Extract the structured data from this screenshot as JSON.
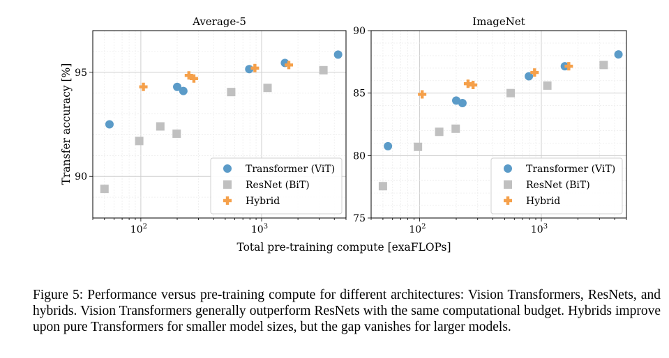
{
  "figure": {
    "ylabel": "Transfer accuracy [%]",
    "xlabel": "Total pre-training compute [exaFLOPs]",
    "caption": "Figure 5: Performance versus pre-training compute for different architectures: Vision Transformers, ResNets, and hybrids. Vision Transformers generally outperform ResNets with the same computational budget. Hybrids improve upon pure Transformers for smaller model sizes, but the gap vanishes for larger models."
  },
  "chart_data": [
    {
      "type": "scatter",
      "title": "Average-5",
      "xlabel": "",
      "ylabel": "Transfer accuracy [%]",
      "xscale": "log",
      "xlim": [
        40,
        5000
      ],
      "ylim": [
        88,
        97
      ],
      "x_ticks": [
        100,
        1000
      ],
      "x_tick_labels": [
        "10^2",
        "10^3"
      ],
      "y_ticks": [
        90,
        95
      ],
      "y_tick_labels": [
        "90",
        "95"
      ],
      "grid": true,
      "legend_position": "bottom-right",
      "series": [
        {
          "name": "Transformer (ViT)",
          "marker": "circle",
          "color": "#5b9bc8",
          "points": [
            [
              55,
              92.5
            ],
            [
              200,
              94.3
            ],
            [
              225,
              94.1
            ],
            [
              790,
              95.15
            ],
            [
              1560,
              95.45
            ],
            [
              4300,
              95.85
            ]
          ]
        },
        {
          "name": "ResNet (BiT)",
          "marker": "square",
          "color": "#c0c0c0",
          "points": [
            [
              50,
              89.4
            ],
            [
              97,
              91.7
            ],
            [
              145,
              92.4
            ],
            [
              198,
              92.05
            ],
            [
              560,
              94.05
            ],
            [
              1120,
              94.25
            ],
            [
              3250,
              95.1
            ]
          ]
        },
        {
          "name": "Hybrid",
          "marker": "plus",
          "color": "#f5a04a",
          "points": [
            [
              105,
              94.3
            ],
            [
              250,
              94.85
            ],
            [
              275,
              94.7
            ],
            [
              880,
              95.2
            ],
            [
              1680,
              95.35
            ]
          ]
        }
      ]
    },
    {
      "type": "scatter",
      "title": "ImageNet",
      "xlabel": "",
      "ylabel": "",
      "xscale": "log",
      "xlim": [
        40,
        5000
      ],
      "ylim": [
        75,
        90
      ],
      "x_ticks": [
        100,
        1000
      ],
      "x_tick_labels": [
        "10^2",
        "10^3"
      ],
      "y_ticks": [
        75,
        80,
        85,
        90
      ],
      "y_tick_labels": [
        "75",
        "80",
        "85",
        "90"
      ],
      "grid": true,
      "legend_position": "bottom-right",
      "series": [
        {
          "name": "Transformer (ViT)",
          "marker": "circle",
          "color": "#5b9bc8",
          "points": [
            [
              55,
              80.75
            ],
            [
              200,
              84.4
            ],
            [
              225,
              84.2
            ],
            [
              790,
              86.35
            ],
            [
              1560,
              87.15
            ],
            [
              4300,
              88.1
            ]
          ]
        },
        {
          "name": "ResNet (BiT)",
          "marker": "square",
          "color": "#c0c0c0",
          "points": [
            [
              50,
              77.55
            ],
            [
              97,
              80.7
            ],
            [
              145,
              81.9
            ],
            [
              198,
              82.15
            ],
            [
              560,
              85.0
            ],
            [
              1120,
              85.6
            ],
            [
              3250,
              87.25
            ]
          ]
        },
        {
          "name": "Hybrid",
          "marker": "plus",
          "color": "#f5a04a",
          "points": [
            [
              105,
              84.9
            ],
            [
              250,
              85.75
            ],
            [
              275,
              85.65
            ],
            [
              880,
              86.65
            ],
            [
              1680,
              87.15
            ]
          ]
        }
      ]
    }
  ]
}
